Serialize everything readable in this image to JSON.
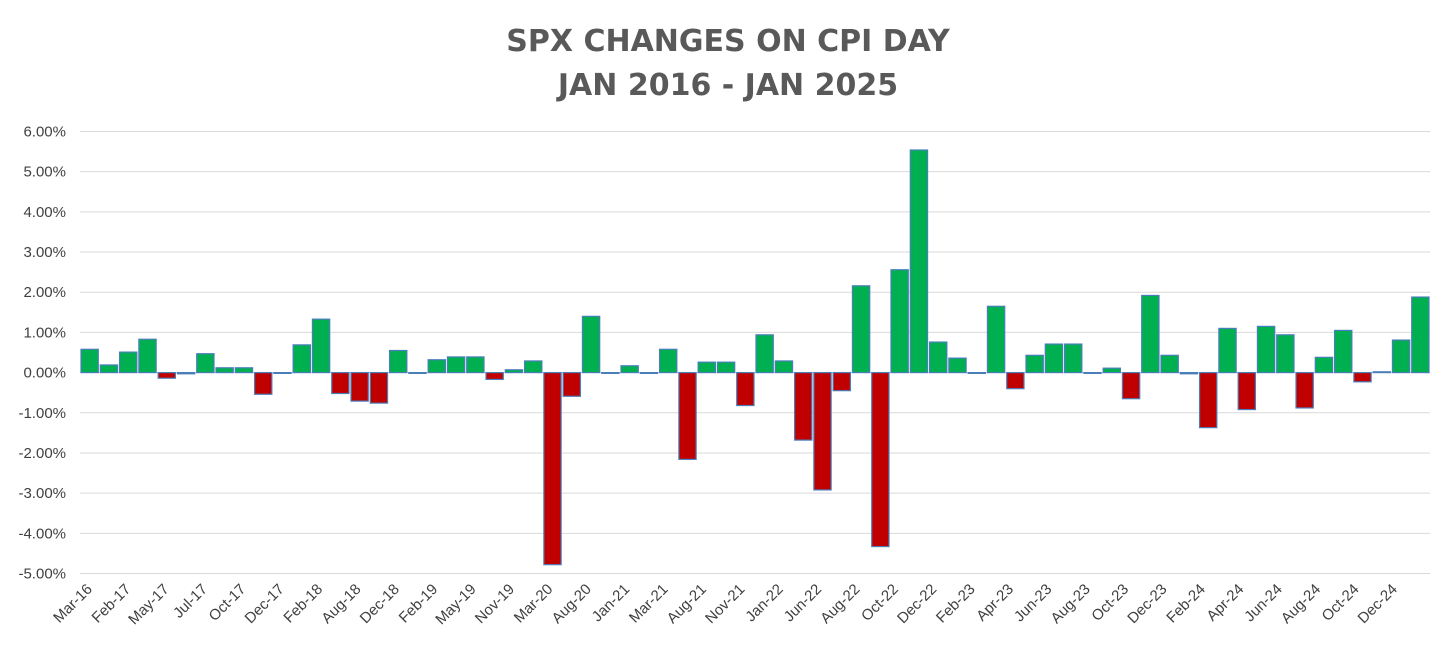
{
  "chart_data": {
    "type": "bar",
    "title_lines": [
      "SPX CHANGES ON CPI DAY",
      "JAN 2016 - JAN 2025"
    ],
    "xlabel": "",
    "ylabel": "",
    "ylim": [
      -5,
      6
    ],
    "yticks": [
      6,
      5,
      4,
      3,
      2,
      1,
      0,
      -1,
      -2,
      -3,
      -4,
      -5
    ],
    "ytick_labels": [
      "6.00%",
      "5.00%",
      "4.00%",
      "3.00%",
      "2.00%",
      "1.00%",
      "0.00%",
      "-1.00%",
      "-2.00%",
      "-3.00%",
      "-4.00%",
      "-5.00%"
    ],
    "xtick_labels": [
      "Mar-16",
      "Feb-17",
      "May-17",
      "Jul-17",
      "Oct-17",
      "Dec-17",
      "Feb-18",
      "Aug-18",
      "Dec-18",
      "Feb-19",
      "May-19",
      "Nov-19",
      "Mar-20",
      "Aug-20",
      "Jan-21",
      "Mar-21",
      "Aug-21",
      "Nov-21",
      "Jan-22",
      "Jun-22",
      "Aug-22",
      "Oct-22",
      "Dec-22",
      "Feb-23",
      "Apr-23",
      "Jun-23",
      "Aug-23",
      "Oct-23",
      "Dec-23",
      "Feb-24",
      "Apr-24",
      "Jun-24",
      "Aug-24",
      "Oct-24",
      "Dec-24"
    ],
    "colors": {
      "positive": "#00b050",
      "negative": "#c00000",
      "outline": "#4a7ebb"
    },
    "values": [
      0.58,
      0.19,
      0.51,
      0.83,
      -0.14,
      -0.03,
      0.47,
      0.12,
      0.12,
      -0.54,
      -0.02,
      0.69,
      1.33,
      -0.52,
      -0.71,
      -0.76,
      0.55,
      -0.02,
      0.32,
      0.39,
      0.39,
      -0.17,
      0.07,
      0.29,
      -4.78,
      -0.59,
      1.4,
      0.0,
      0.17,
      -0.02,
      0.58,
      -2.16,
      0.26,
      0.26,
      -0.82,
      0.94,
      0.29,
      -1.68,
      -2.92,
      -0.45,
      2.16,
      -4.33,
      2.56,
      5.54,
      0.76,
      0.36,
      0.0,
      1.65,
      -0.4,
      0.43,
      0.71,
      0.71,
      0.0,
      0.11,
      -0.65,
      1.92,
      0.43,
      -0.03,
      -1.37,
      1.1,
      -0.92,
      1.15,
      0.94,
      -0.88,
      0.38,
      1.05,
      -0.23,
      0.02,
      0.81,
      1.88
    ]
  }
}
